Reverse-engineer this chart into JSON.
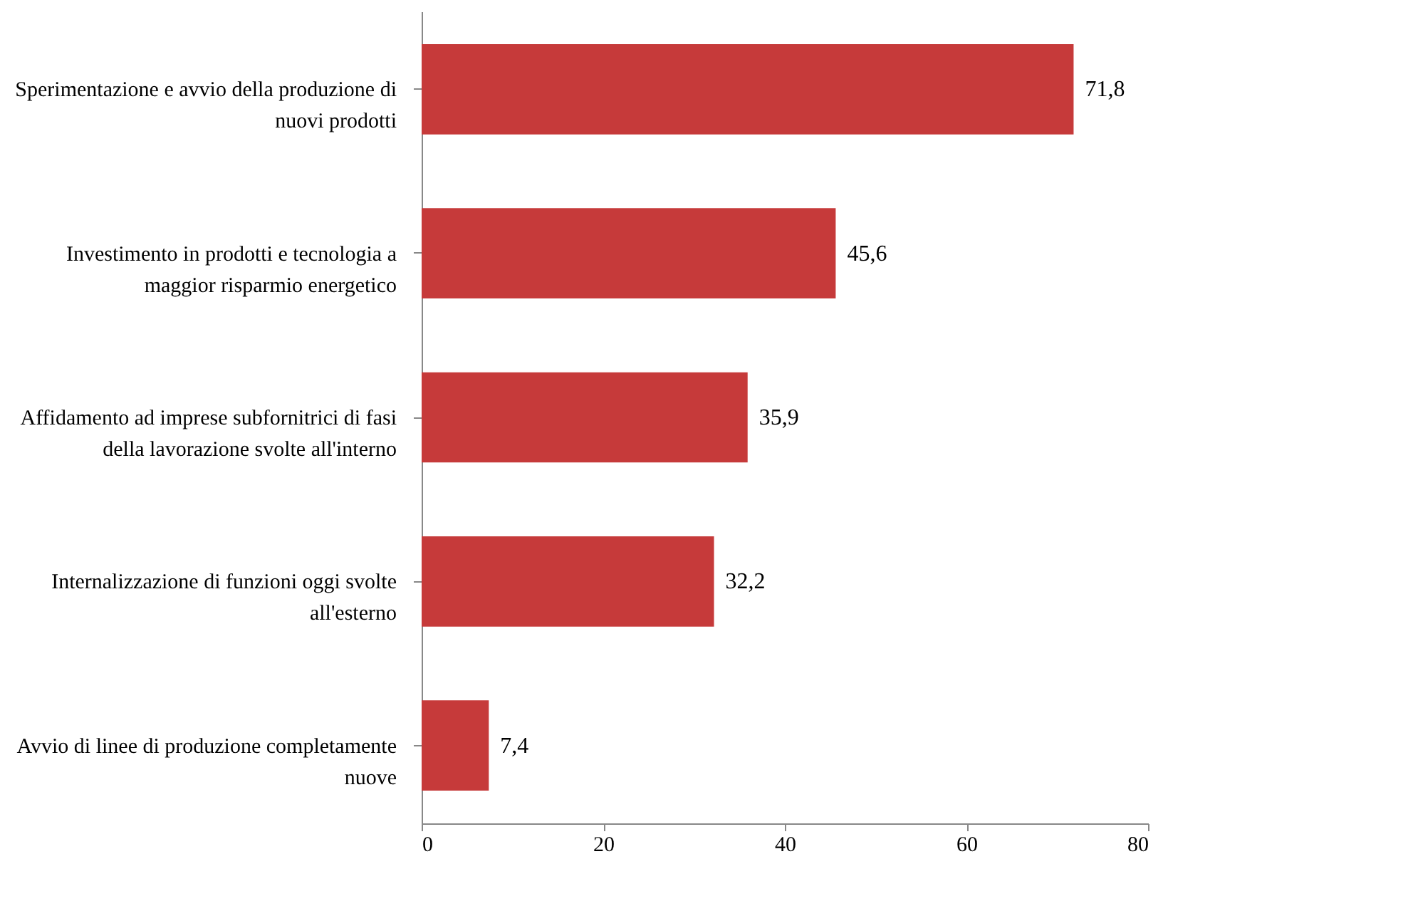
{
  "chart_data": {
    "type": "bar",
    "orientation": "horizontal",
    "categories": [
      "Sperimentazione e avvio della produzione di nuovi prodotti",
      "Investimento in prodotti e tecnologia a maggior risparmio energetico",
      "Affidamento ad imprese subfornitrici di fasi della lavorazione svolte all'interno",
      "Internalizzazione di funzioni oggi svolte all'esterno",
      "Avvio di linee di produzione completamente nuove"
    ],
    "values": [
      71.8,
      45.6,
      35.9,
      32.2,
      7.4
    ],
    "value_labels": [
      "71,8",
      "45,6",
      "35,9",
      "32,2",
      "7,4"
    ],
    "color": "#c63a3a",
    "xlim": [
      0,
      80
    ],
    "xticks": [
      0,
      20,
      40,
      60,
      80
    ],
    "grid": false
  }
}
